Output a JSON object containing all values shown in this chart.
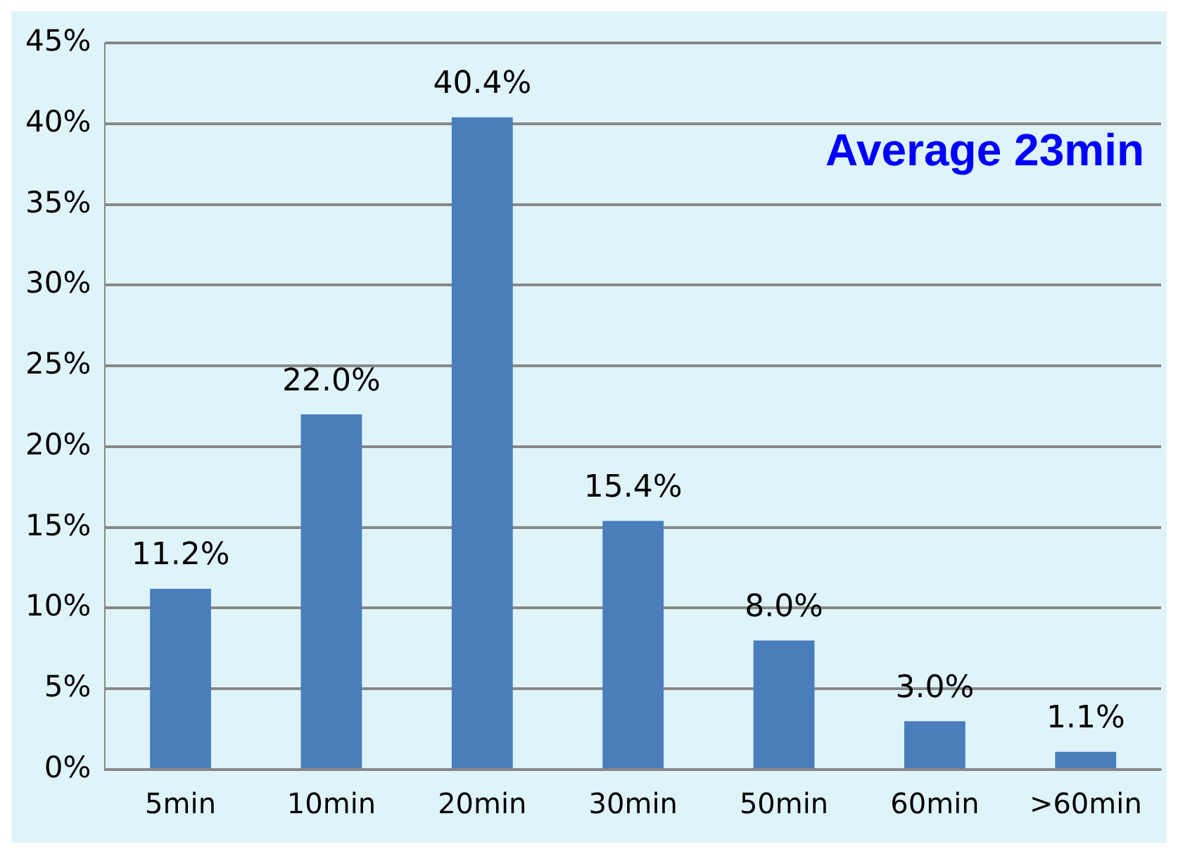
{
  "chart_data": {
    "type": "bar",
    "categories": [
      "5min",
      "10min",
      "20min",
      "30min",
      "50min",
      "60min",
      ">60min"
    ],
    "values": [
      11.2,
      22.0,
      40.4,
      15.4,
      8.0,
      3.0,
      1.1
    ],
    "value_labels": [
      "11.2%",
      "22.0%",
      "40.4%",
      "15.4%",
      "8.0%",
      "3.0%",
      "1.1%"
    ],
    "color": "#4a7ebb",
    "ylim": [
      0,
      45
    ],
    "yticks": [
      {
        "value": 0,
        "label": "0%"
      },
      {
        "value": 5,
        "label": "5%"
      },
      {
        "value": 10,
        "label": "10%"
      },
      {
        "value": 15,
        "label": "15%"
      },
      {
        "value": 20,
        "label": "20%"
      },
      {
        "value": 25,
        "label": "25%"
      },
      {
        "value": 30,
        "label": "30%"
      },
      {
        "value": 35,
        "label": "35%"
      },
      {
        "value": 40,
        "label": "40%"
      },
      {
        "value": 45,
        "label": "45%"
      }
    ],
    "grid": "y",
    "annotations": [
      "Average 23min"
    ]
  }
}
